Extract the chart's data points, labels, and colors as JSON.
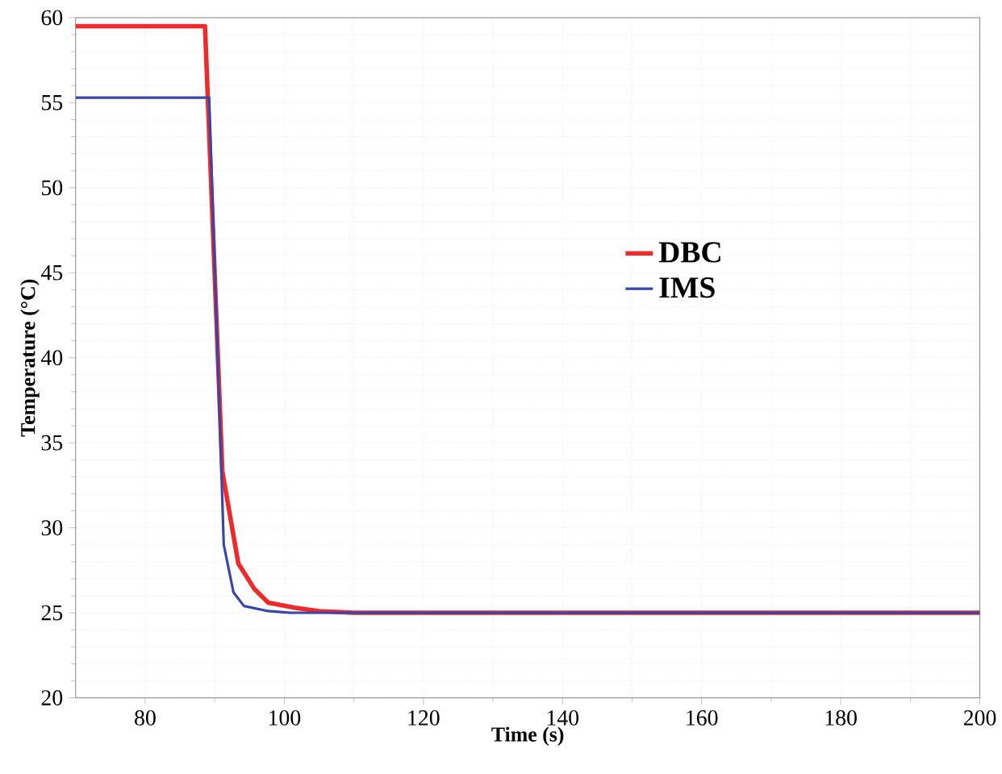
{
  "chart_data": {
    "type": "line",
    "xlabel": "Time (s)",
    "ylabel": "Temperature (°C)",
    "xlim": [
      70,
      200
    ],
    "ylim": [
      20,
      60
    ],
    "xticks": [
      80,
      100,
      120,
      140,
      160,
      180,
      200
    ],
    "yticks": [
      20,
      25,
      30,
      35,
      40,
      45,
      50,
      55,
      60
    ],
    "grid": true,
    "legend": "right",
    "line_style": "solid",
    "marker": "none",
    "series": [
      {
        "name": "DBC",
        "color": "#ee2a2a",
        "x": [
          70,
          88.6,
          91.1,
          93.4,
          95.7,
          97.7,
          101.5,
          105,
          110,
          200
        ],
        "values": [
          59.5,
          59.5,
          33.3,
          27.9,
          26.4,
          25.6,
          25.3,
          25.1,
          25.0,
          25.0
        ]
      },
      {
        "name": "IMS",
        "color": "#3a45a8",
        "x": [
          70,
          89.2,
          91.3,
          92.7,
          94.2,
          97.7,
          101,
          200
        ],
        "values": [
          55.3,
          55.3,
          29.0,
          26.2,
          25.4,
          25.1,
          25.0,
          25.0
        ]
      }
    ]
  }
}
